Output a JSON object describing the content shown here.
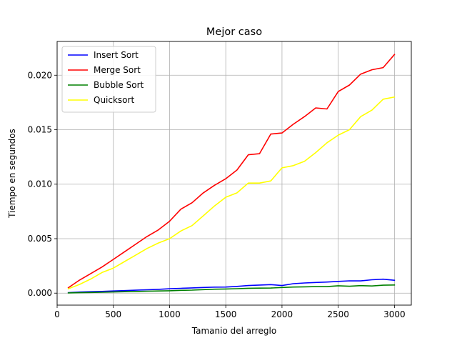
{
  "chart_data": {
    "type": "line",
    "title": "Mejor caso",
    "xlabel": "Tamanio del arreglo",
    "ylabel": "Tiempo en segundos",
    "xlim": [
      0,
      3150
    ],
    "ylim": [
      -0.0011,
      0.0231
    ],
    "xticks": [
      0,
      500,
      1000,
      1500,
      2000,
      2500,
      3000
    ],
    "xtick_labels": [
      "0",
      "500",
      "1000",
      "1500",
      "2000",
      "2500",
      "3000"
    ],
    "yticks": [
      0.0,
      0.005,
      0.01,
      0.015,
      0.02
    ],
    "ytick_labels": [
      "0.000",
      "0.005",
      "0.010",
      "0.015",
      "0.020"
    ],
    "grid": true,
    "legend_position": "top-left",
    "x": [
      100,
      200,
      300,
      400,
      500,
      600,
      700,
      800,
      900,
      1000,
      1100,
      1200,
      1300,
      1400,
      1500,
      1600,
      1700,
      1800,
      1900,
      2000,
      2100,
      2200,
      2300,
      2400,
      2500,
      2600,
      2700,
      2800,
      2900,
      3000
    ],
    "series": [
      {
        "name": "Insert Sort",
        "color": "#0000ff",
        "values": [
          5e-05,
          0.0001,
          0.00013,
          0.00016,
          0.0002,
          0.00023,
          0.00027,
          0.00031,
          0.00035,
          0.0004,
          0.00044,
          0.00048,
          0.00052,
          0.00055,
          0.00056,
          0.00062,
          0.0007,
          0.00074,
          0.00078,
          0.0007,
          0.00087,
          0.00093,
          0.00098,
          0.00102,
          0.00108,
          0.00113,
          0.00112,
          0.00123,
          0.00128,
          0.00118
        ]
      },
      {
        "name": "Merge Sort",
        "color": "#ff0000",
        "values": [
          0.0005,
          0.0012,
          0.0018,
          0.0024,
          0.0031,
          0.0038,
          0.0045,
          0.0052,
          0.0058,
          0.0066,
          0.0077,
          0.0083,
          0.0092,
          0.0099,
          0.0105,
          0.0113,
          0.0127,
          0.0128,
          0.0146,
          0.0147,
          0.0155,
          0.0162,
          0.017,
          0.0169,
          0.0185,
          0.0191,
          0.0201,
          0.0205,
          0.0207,
          0.0219
        ]
      },
      {
        "name": "Bubble Sort",
        "color": "#008000",
        "values": [
          2e-05,
          4e-05,
          6e-05,
          8e-05,
          0.00011,
          0.00013,
          0.00015,
          0.00018,
          0.0002,
          0.00022,
          0.00026,
          0.00028,
          0.00032,
          0.00036,
          0.00038,
          0.00041,
          0.00045,
          0.00046,
          0.00047,
          0.00052,
          0.00056,
          0.00058,
          0.0006,
          0.0006,
          0.00068,
          0.00063,
          0.00069,
          0.00066,
          0.00073,
          0.00075
        ]
      },
      {
        "name": "Quicksort",
        "color": "#ffff00",
        "values": [
          0.0004,
          0.0008,
          0.0013,
          0.0019,
          0.0023,
          0.0029,
          0.0035,
          0.0041,
          0.0046,
          0.005,
          0.0057,
          0.0062,
          0.0071,
          0.008,
          0.0088,
          0.0092,
          0.0101,
          0.0101,
          0.0103,
          0.0115,
          0.0117,
          0.0121,
          0.0129,
          0.0138,
          0.0145,
          0.015,
          0.0162,
          0.0168,
          0.0178,
          0.018
        ]
      }
    ]
  }
}
